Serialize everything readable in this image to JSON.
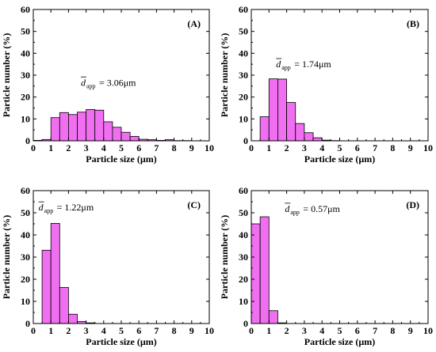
{
  "figure": {
    "bar_fill": "#f06ef0",
    "bar_stroke": "#000000",
    "axis_color": "#000000"
  },
  "chart_data": [
    {
      "type": "bar",
      "panel_label": "(A)",
      "xlabel": "Particle size (µm)",
      "ylabel": "Particle number (%)",
      "xlim": [
        0,
        10
      ],
      "ylim": [
        0,
        60
      ],
      "xticks": [
        "0",
        "1",
        "2",
        "3",
        "4",
        "5",
        "6",
        "7",
        "8",
        "9",
        "10"
      ],
      "yticks": [
        "0",
        "10",
        "20",
        "30",
        "40",
        "50",
        "60"
      ],
      "bin_width": 0.5,
      "x": [
        0.25,
        0.75,
        1.25,
        1.75,
        2.25,
        2.75,
        3.25,
        3.75,
        4.25,
        4.75,
        5.25,
        5.75,
        6.25,
        6.75,
        7.25,
        7.75,
        8.25,
        8.75
      ],
      "values": [
        0.2,
        0.6,
        10.6,
        12.9,
        12.0,
        13.1,
        14.3,
        14.0,
        8.7,
        6.2,
        3.9,
        2.0,
        0.7,
        0.5,
        0.2,
        0.5,
        0.1,
        0.1
      ],
      "annotation": {
        "symbol": "d",
        "subscript": "app",
        "text": "= 3.06μm"
      }
    },
    {
      "type": "bar",
      "panel_label": "(B)",
      "xlabel": "Particle size (µm)",
      "ylabel": "Particle number (%)",
      "xlim": [
        0,
        10
      ],
      "ylim": [
        0,
        60
      ],
      "xticks": [
        "0",
        "1",
        "2",
        "3",
        "4",
        "5",
        "6",
        "7",
        "8",
        "9",
        "10"
      ],
      "yticks": [
        "0",
        "10",
        "20",
        "30",
        "40",
        "50",
        "60"
      ],
      "bin_width": 0.5,
      "x": [
        0.75,
        1.25,
        1.75,
        2.25,
        2.75,
        3.25,
        3.75,
        4.25,
        4.75
      ],
      "values": [
        11.0,
        28.3,
        28.2,
        17.5,
        7.9,
        3.7,
        1.4,
        0.3,
        0.1
      ],
      "annotation": {
        "symbol": "d",
        "subscript": "app",
        "text": "= 1.74μm"
      }
    },
    {
      "type": "bar",
      "panel_label": "(C)",
      "xlabel": "Particle size (µm)",
      "ylabel": "Particle number (%)",
      "xlim": [
        0,
        10
      ],
      "ylim": [
        0,
        60
      ],
      "xticks": [
        "0",
        "1",
        "2",
        "3",
        "4",
        "5",
        "6",
        "7",
        "8",
        "9",
        "10"
      ],
      "yticks": [
        "0",
        "10",
        "20",
        "30",
        "40",
        "50",
        "60"
      ],
      "bin_width": 0.5,
      "x": [
        0.75,
        1.25,
        1.75,
        2.25,
        2.75,
        3.25
      ],
      "values": [
        33.1,
        45.2,
        16.3,
        4.2,
        0.9,
        0.3
      ],
      "annotation": {
        "symbol": "d",
        "subscript": "app",
        "text": "= 1.22μm"
      }
    },
    {
      "type": "bar",
      "panel_label": "(D)",
      "xlabel": "Particle size (µm)",
      "ylabel": "Particle number (%)",
      "xlim": [
        0,
        10
      ],
      "ylim": [
        0,
        60
      ],
      "xticks": [
        "0",
        "1",
        "2",
        "3",
        "4",
        "5",
        "6",
        "7",
        "8",
        "9",
        "10"
      ],
      "yticks": [
        "0",
        "10",
        "20",
        "30",
        "40",
        "50",
        "60"
      ],
      "bin_width": 0.5,
      "x": [
        0.25,
        0.75,
        1.25,
        1.75
      ],
      "values": [
        45.0,
        48.2,
        5.8,
        0.3
      ],
      "annotation": {
        "symbol": "d",
        "subscript": "app",
        "text": "= 0.57μm"
      }
    }
  ]
}
